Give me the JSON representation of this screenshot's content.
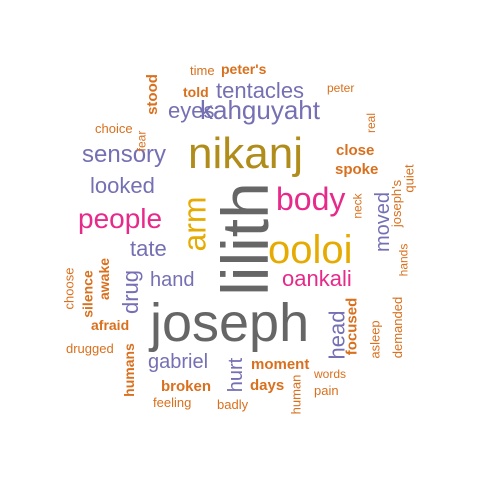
{
  "colors": {
    "orange": "#d9701e",
    "purple": "#7570b3",
    "pink": "#e7298a",
    "mustard": "#b08c1a",
    "yellow": "#e6ab02",
    "gray": "#666666"
  },
  "words": [
    {
      "text": "joseph",
      "color": "gray"
    },
    {
      "text": "lilith",
      "color": "gray"
    },
    {
      "text": "nikanj",
      "color": "mustard"
    },
    {
      "text": "ooloi",
      "color": "yellow"
    },
    {
      "text": "arm",
      "color": "yellow"
    },
    {
      "text": "body",
      "color": "pink"
    },
    {
      "text": "people",
      "color": "pink"
    },
    {
      "text": "oankali",
      "color": "pink"
    },
    {
      "text": "kahguyaht",
      "color": "purple"
    },
    {
      "text": "sensory",
      "color": "purple"
    },
    {
      "text": "tentacles",
      "color": "purple"
    },
    {
      "text": "eyes",
      "color": "purple"
    },
    {
      "text": "looked",
      "color": "purple"
    },
    {
      "text": "tate",
      "color": "purple"
    },
    {
      "text": "hand",
      "color": "purple"
    },
    {
      "text": "drug",
      "color": "purple"
    },
    {
      "text": "gabriel",
      "color": "purple"
    },
    {
      "text": "hurt",
      "color": "purple"
    },
    {
      "text": "head",
      "color": "purple"
    },
    {
      "text": "moved",
      "color": "purple"
    },
    {
      "text": "close",
      "color": "orange"
    },
    {
      "text": "spoke",
      "color": "orange"
    },
    {
      "text": "stood",
      "color": "orange"
    },
    {
      "text": "told",
      "color": "orange"
    },
    {
      "text": "peter's",
      "color": "orange"
    },
    {
      "text": "time",
      "color": "orange"
    },
    {
      "text": "peter",
      "color": "orange"
    },
    {
      "text": "real",
      "color": "orange"
    },
    {
      "text": "choice",
      "color": "orange"
    },
    {
      "text": "fear",
      "color": "orange"
    },
    {
      "text": "neck",
      "color": "orange"
    },
    {
      "text": "joseph's",
      "color": "orange"
    },
    {
      "text": "quiet",
      "color": "orange"
    },
    {
      "text": "hands",
      "color": "orange"
    },
    {
      "text": "demanded",
      "color": "orange"
    },
    {
      "text": "asleep",
      "color": "orange"
    },
    {
      "text": "focused",
      "color": "orange"
    },
    {
      "text": "silence",
      "color": "orange"
    },
    {
      "text": "awake",
      "color": "orange"
    },
    {
      "text": "choose",
      "color": "orange"
    },
    {
      "text": "afraid",
      "color": "orange"
    },
    {
      "text": "drugged",
      "color": "orange"
    },
    {
      "text": "humans",
      "color": "orange"
    },
    {
      "text": "moment",
      "color": "orange"
    },
    {
      "text": "days",
      "color": "orange"
    },
    {
      "text": "broken",
      "color": "orange"
    },
    {
      "text": "feeling",
      "color": "orange"
    },
    {
      "text": "badly",
      "color": "orange"
    },
    {
      "text": "human",
      "color": "orange"
    },
    {
      "text": "pain",
      "color": "orange"
    },
    {
      "text": "words",
      "color": "orange"
    }
  ]
}
